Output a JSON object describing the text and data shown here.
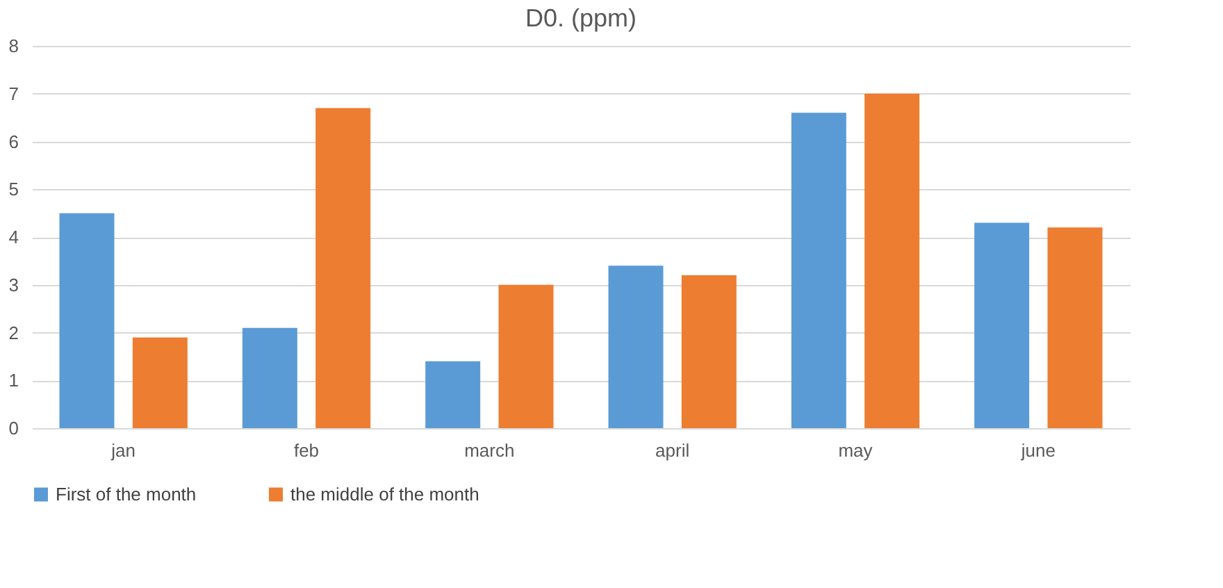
{
  "chart_data": {
    "type": "bar",
    "title": "D0. (ppm)",
    "categories": [
      "jan",
      "feb",
      "march",
      "april",
      "may",
      "june"
    ],
    "series": [
      {
        "name": "First of the month",
        "color": "#5b9bd5",
        "values": [
          4.5,
          2.1,
          1.4,
          3.4,
          6.6,
          4.3
        ]
      },
      {
        "name": "the middle of the month",
        "color": "#ed7d31",
        "values": [
          1.9,
          6.7,
          3.0,
          3.2,
          7.0,
          4.2
        ]
      }
    ],
    "ylim": [
      0,
      8
    ],
    "yticks": [
      0,
      1,
      2,
      3,
      4,
      5,
      6,
      7,
      8
    ],
    "grid": "y",
    "legend": "bottom"
  }
}
